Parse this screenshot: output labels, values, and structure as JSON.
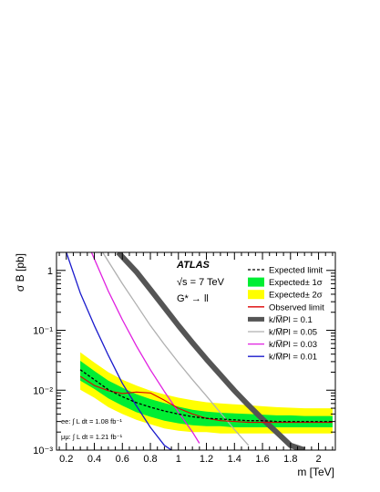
{
  "chart_data": {
    "type": "line",
    "xlabel": "m [TeV]",
    "ylabel": "σ B [pb]",
    "xlim": [
      0.13,
      2.12
    ],
    "ylim": [
      0.001,
      2.0
    ],
    "log_y": true,
    "grid": false,
    "legend_position": "top-right",
    "x_ticks": [
      0.2,
      0.4,
      0.6,
      0.8,
      1,
      1.2,
      1.4,
      1.6,
      1.8,
      2
    ],
    "x_tick_labels": [
      "0.2",
      "0.4",
      "0.6",
      "0.8",
      "1",
      "1.2",
      "1.4",
      "1.6",
      "1.8",
      "2"
    ],
    "y_ticks": [
      0.001,
      0.01,
      0.1,
      1
    ],
    "y_tick_labels": [
      "10⁻³",
      "10⁻²",
      "10⁻¹",
      "1"
    ],
    "annotations": {
      "experiment": "ATLAS",
      "energy": "√s = 7 TeV",
      "process": "G* → ll",
      "lumi_ee": "ee: ∫ L dt = 1.08 fb⁻¹",
      "lumi_mumu": "μμ: ∫ L dt = 1.21 fb⁻¹"
    },
    "x": [
      0.3,
      0.4,
      0.5,
      0.6,
      0.7,
      0.8,
      0.9,
      1.0,
      1.1,
      1.2,
      1.3,
      1.4,
      1.5,
      1.6,
      1.7,
      1.8,
      1.9,
      2.0,
      2.1
    ],
    "bands": [
      {
        "name": "Expected± 2σ",
        "color": "#ffff00",
        "lower": [
          0.0102,
          0.0075,
          0.0052,
          0.004,
          0.0032,
          0.0027,
          0.0023,
          0.0021,
          0.002,
          0.002,
          0.0019,
          0.0019,
          0.0019,
          0.0019,
          0.0019,
          0.0019,
          0.0019,
          0.0019,
          0.0019
        ],
        "upper": [
          0.043,
          0.029,
          0.02,
          0.015,
          0.012,
          0.0098,
          0.0085,
          0.0075,
          0.0068,
          0.0063,
          0.006,
          0.0058,
          0.0056,
          0.0054,
          0.0052,
          0.0051,
          0.005,
          0.005,
          0.005
        ]
      },
      {
        "name": "Expected± 1σ",
        "color": "#00ee33",
        "lower": [
          0.0145,
          0.0105,
          0.0073,
          0.0055,
          0.0043,
          0.0036,
          0.0031,
          0.0028,
          0.0026,
          0.0025,
          0.0025,
          0.0024,
          0.0024,
          0.0024,
          0.0024,
          0.0024,
          0.0024,
          0.0024,
          0.0024
        ],
        "upper": [
          0.031,
          0.021,
          0.0145,
          0.011,
          0.0086,
          0.0071,
          0.0061,
          0.0053,
          0.0047,
          0.0044,
          0.0042,
          0.0041,
          0.004,
          0.0039,
          0.0038,
          0.0038,
          0.0037,
          0.0037,
          0.0037
        ]
      }
    ],
    "series": [
      {
        "name": "Expected limit",
        "color": "#000000",
        "dash": true,
        "width": 1.3,
        "x": [
          0.3,
          0.4,
          0.5,
          0.6,
          0.7,
          0.8,
          0.9,
          1.0,
          1.1,
          1.2,
          1.3,
          1.4,
          1.5,
          1.6,
          1.7,
          1.8,
          1.9,
          2.0,
          2.1
        ],
        "values": [
          0.022,
          0.015,
          0.0102,
          0.0078,
          0.0062,
          0.0052,
          0.0045,
          0.004,
          0.0036,
          0.0034,
          0.0033,
          0.0032,
          0.0031,
          0.0031,
          0.003,
          0.003,
          0.003,
          0.003,
          0.003
        ]
      },
      {
        "name": "Observed limit",
        "color": "#dd0000",
        "dash": false,
        "width": 1.1,
        "x": [
          0.3,
          0.4,
          0.5,
          0.6,
          0.7,
          0.8,
          0.9,
          1.0,
          1.1,
          1.2,
          1.3,
          1.4,
          1.5,
          1.6,
          1.7,
          1.8,
          1.9,
          2.0,
          2.1
        ],
        "values": [
          0.017,
          0.012,
          0.0098,
          0.0088,
          0.0093,
          0.009,
          0.0068,
          0.005,
          0.004,
          0.0034,
          0.0031,
          0.003,
          0.0029,
          0.0029,
          0.0029,
          0.0029,
          0.0029,
          0.0029,
          0.0029
        ]
      },
      {
        "name": "k/M̅Pl = 0.1",
        "color": "#555555",
        "dash": false,
        "width": 6,
        "x": [
          0.57,
          0.7,
          0.8,
          0.9,
          1.0,
          1.1,
          1.2,
          1.3,
          1.4,
          1.5,
          1.6,
          1.7,
          1.8,
          1.9
        ],
        "values": [
          2.0,
          0.95,
          0.48,
          0.24,
          0.12,
          0.062,
          0.033,
          0.018,
          0.0098,
          0.0056,
          0.0033,
          0.002,
          0.0012,
          0.001
        ]
      },
      {
        "name": "k/M̅Pl = 0.05",
        "color": "#b0b0b0",
        "dash": false,
        "width": 1.3,
        "x": [
          0.46,
          0.6,
          0.7,
          0.8,
          0.9,
          1.0,
          1.1,
          1.2,
          1.3,
          1.4,
          1.5
        ],
        "values": [
          2.0,
          0.6,
          0.27,
          0.12,
          0.058,
          0.029,
          0.015,
          0.008,
          0.0042,
          0.0022,
          0.0012
        ]
      },
      {
        "name": "k/M̅Pl = 0.03",
        "color": "#e020e0",
        "dash": false,
        "width": 1.3,
        "x": [
          0.38,
          0.5,
          0.6,
          0.7,
          0.8,
          0.9,
          1.0,
          1.1,
          1.15
        ],
        "values": [
          2.0,
          0.45,
          0.15,
          0.055,
          0.022,
          0.0095,
          0.0043,
          0.002,
          0.0013
        ]
      },
      {
        "name": "k/M̅Pl = 0.01",
        "color": "#1a1acc",
        "dash": false,
        "width": 1.3,
        "x": [
          0.2,
          0.3,
          0.4,
          0.5,
          0.6,
          0.7,
          0.8,
          0.9,
          0.95
        ],
        "values": [
          2.0,
          0.42,
          0.12,
          0.038,
          0.013,
          0.0055,
          0.0024,
          0.0012,
          0.001
        ]
      }
    ],
    "legend": [
      {
        "label": "Expected limit",
        "kind": "dash",
        "color": "#000000"
      },
      {
        "label": "Expected± 1σ",
        "kind": "box",
        "color": "#00ee33"
      },
      {
        "label": "Expected± 2σ",
        "kind": "box",
        "color": "#ffff00"
      },
      {
        "label": "Observed limit",
        "kind": "line",
        "color": "#dd0000"
      },
      {
        "label": "k/M̅Pl = 0.1",
        "kind": "thick",
        "color": "#555555"
      },
      {
        "label": "k/M̅Pl = 0.05",
        "kind": "line",
        "color": "#b0b0b0"
      },
      {
        "label": "k/M̅Pl = 0.03",
        "kind": "line",
        "color": "#e020e0"
      },
      {
        "label": "k/M̅Pl = 0.01",
        "kind": "line",
        "color": "#1a1acc"
      }
    ]
  }
}
